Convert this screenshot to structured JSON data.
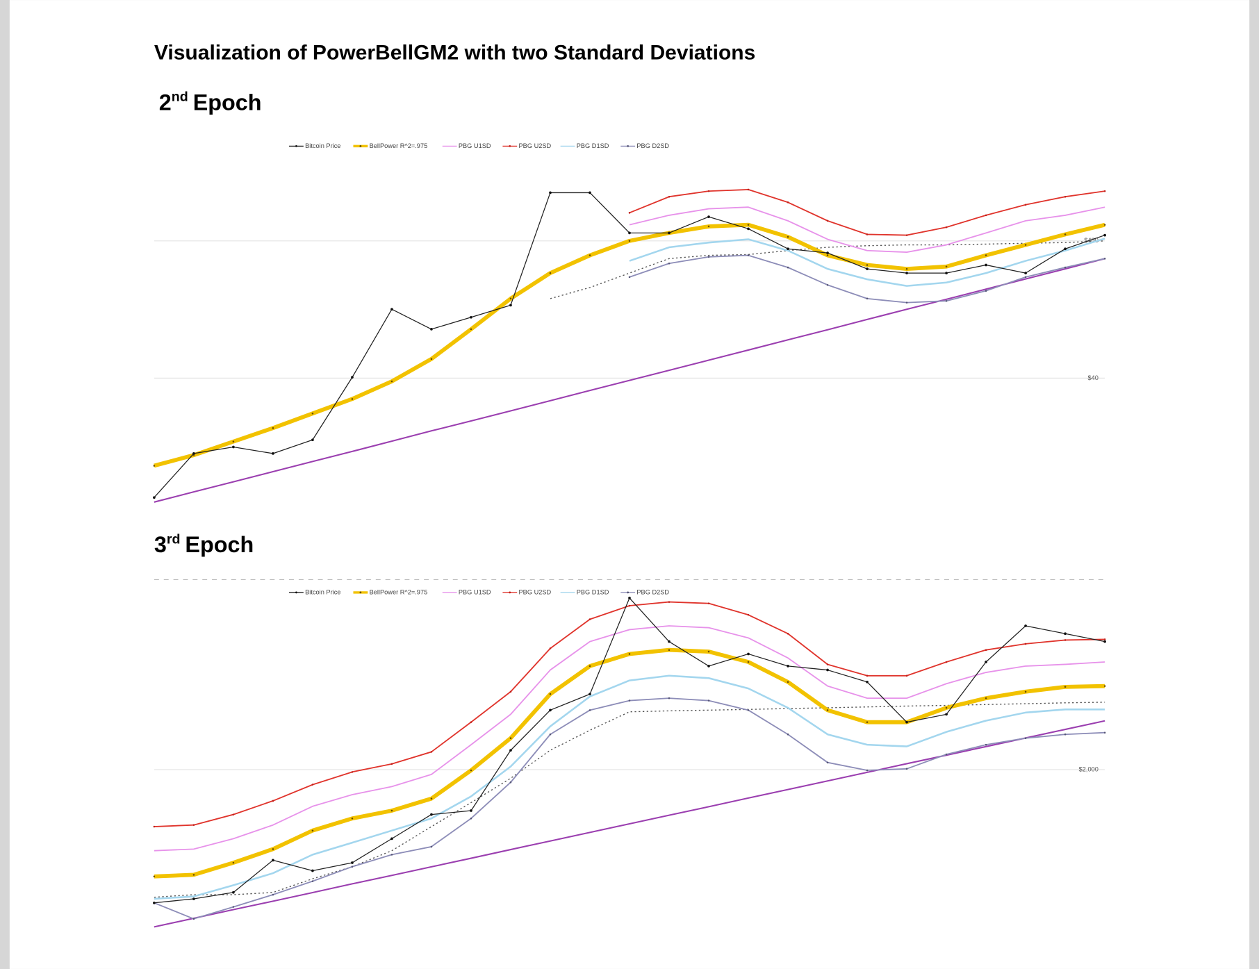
{
  "title": "Visualization of PowerBellGM2 with two Standard Deviations",
  "headings": [
    {
      "ordinal": "2",
      "suffix": "nd",
      "text": "Epoch"
    },
    {
      "ordinal": "3",
      "suffix": "rd",
      "text": "Epoch"
    }
  ],
  "chart_data": [
    {
      "type": "line",
      "log_y": true,
      "legend": "top",
      "grid": true,
      "categories": [
        null,
        null,
        null,
        null,
        null,
        null,
        null,
        null,
        null,
        null,
        null,
        null,
        null,
        null,
        null,
        null,
        null,
        null,
        null,
        null,
        null,
        null,
        null,
        null,
        null
      ],
      "ylim": [
        5,
        2000
      ],
      "yticks": [
        {
          "value": 40,
          "label": "$40"
        },
        {
          "value": 400,
          "label": "$400"
        }
      ],
      "series": [
        {
          "name": "Bitcoin Price",
          "color": "#222222",
          "marker": true,
          "marker_color": "#111111",
          "values": [
            5.4,
            11.3,
            12.6,
            11.3,
            14.2,
            40.6,
            127,
            91,
            111,
            136,
            898,
            898,
            457,
            457,
            599,
            490,
            350,
            327,
            250,
            233,
            233,
            267,
            233,
            350,
            440
          ]
        },
        {
          "name": "BellPower R^2=.975",
          "color": "#f2c200",
          "marker": true,
          "marker_color": "#6b4e00",
          "values": [
            9.2,
            11,
            13.8,
            17.3,
            22.1,
            28.2,
            37.9,
            55.2,
            91,
            152,
            233,
            314,
            400,
            457,
            510,
            524,
            428,
            314,
            267,
            250,
            260,
            314,
            374,
            446,
            524
          ]
        },
        {
          "name": "PBG U1SD",
          "color": "#e792ea",
          "marker": false,
          "values": [
            null,
            null,
            null,
            null,
            null,
            null,
            null,
            null,
            null,
            null,
            null,
            null,
            524,
            615,
            686,
            704,
            560,
            411,
            340,
            331,
            374,
            457,
            560,
            615,
            704
          ]
        },
        {
          "name": "PBG U2SD",
          "color": "#e0342c",
          "marker": true,
          "marker_color": "#c0201a",
          "values": [
            null,
            null,
            null,
            null,
            null,
            null,
            null,
            null,
            null,
            null,
            null,
            null,
            641,
            839,
            922,
            946,
            764,
            560,
            446,
            440,
            503,
            615,
            733,
            839,
            922
          ]
        },
        {
          "name": "PBG D1SD",
          "color": "#a3d6ee",
          "marker": false,
          "values": [
            null,
            null,
            null,
            null,
            null,
            null,
            null,
            null,
            null,
            null,
            null,
            null,
            286,
            359,
            389,
            411,
            340,
            250,
            210,
            188,
            199,
            233,
            286,
            340,
            416
          ]
        },
        {
          "name": "PBG D2SD",
          "color": "#8d8db8",
          "marker": true,
          "marker_color": "#555577",
          "values": [
            null,
            null,
            null,
            null,
            null,
            null,
            null,
            null,
            null,
            null,
            null,
            null,
            218,
            274,
            306,
            314,
            256,
            191,
            152,
            142,
            146,
            173,
            218,
            256,
            297
          ]
        },
        {
          "color": "#9b3fb0",
          "marker": false,
          "values": [
            5,
            5.93,
            7.03,
            8.33,
            9.88,
            11.7,
            13.9,
            16.5,
            19.5,
            23.1,
            27.4,
            32.5,
            38.5,
            45.6,
            54.1,
            64.1,
            76,
            90.1,
            107,
            127,
            150,
            178,
            211,
            250,
            297
          ]
        },
        {
          "color": "#555555",
          "marker": false,
          "dash": true,
          "values": [
            null,
            null,
            null,
            null,
            null,
            null,
            null,
            null,
            null,
            null,
            152,
            183,
            233,
            297,
            314,
            318,
            340,
            359,
            369,
            374,
            374,
            379,
            384,
            389,
            400
          ]
        }
      ]
    },
    {
      "type": "line",
      "log_y": true,
      "legend": "top",
      "grid": true,
      "categories": [
        null,
        null,
        null,
        null,
        null,
        null,
        null,
        null,
        null,
        null,
        null,
        null,
        null,
        null,
        null,
        null,
        null,
        null,
        null,
        null,
        null,
        null,
        null,
        null,
        null
      ],
      "ylim": [
        250,
        23000
      ],
      "yticks": [
        {
          "value": 2000,
          "label": "$2,000"
        }
      ],
      "series": [
        {
          "name": "Bitcoin Price",
          "color": "#222222",
          "marker": true,
          "marker_color": "#111111",
          "values": [
            363,
            382,
            415,
            627,
            548,
            607,
            826,
            1125,
            1183,
            2560,
            4280,
            5260,
            18000,
            10300,
            7530,
            8790,
            7530,
            7160,
            6140,
            3670,
            4060,
            7930,
            12600,
            11400,
            10300
          ]
        },
        {
          "name": "BellPower R^2=.975",
          "color": "#f2c200",
          "marker": true,
          "marker_color": "#6b4e00",
          "values": [
            509,
            520,
            607,
            723,
            916,
            1070,
            1183,
            1380,
            1980,
            2990,
            5260,
            7530,
            8790,
            9250,
            9060,
            7930,
            6140,
            4280,
            3670,
            3670,
            4410,
            4990,
            5420,
            5770,
            5830
          ]
        },
        {
          "name": "PBG U1SD",
          "color": "#e792ea",
          "marker": false,
          "values": [
            708,
            723,
            826,
            984,
            1250,
            1450,
            1610,
            1880,
            2750,
            4060,
            7160,
            10300,
            12000,
            12600,
            12300,
            10800,
            8350,
            5830,
            4990,
            4990,
            6010,
            6940,
            7530,
            7690,
            7930
          ]
        },
        {
          "name": "PBG U2SD",
          "color": "#e0342c",
          "marker": true,
          "marker_color": "#c0201a",
          "values": [
            964,
            984,
            1125,
            1340,
            1650,
            1940,
            2150,
            2510,
            3670,
            5420,
            9440,
            13700,
            16300,
            17100,
            16800,
            14500,
            11400,
            7690,
            6650,
            6650,
            7930,
            9250,
            10000,
            10500,
            10600
          ]
        },
        {
          "name": "PBG D1SD",
          "color": "#a3d6ee",
          "marker": false,
          "values": [
            382,
            394,
            455,
            531,
            673,
            785,
            916,
            1070,
            1420,
            2080,
            3480,
            5100,
            6260,
            6650,
            6450,
            5650,
            4410,
            3140,
            2750,
            2690,
            3240,
            3740,
            4150,
            4320,
            4320
          ]
        },
        {
          "name": "PBG D2SD",
          "color": "#8d8db8",
          "marker": true,
          "marker_color": "#555577",
          "values": [
            363,
            296,
            345,
            403,
            479,
            577,
            673,
            745,
            1070,
            1700,
            3140,
            4280,
            4840,
            4990,
            4840,
            4280,
            3140,
            2190,
            1980,
            2020,
            2430,
            2750,
            2990,
            3140,
            3210
          ]
        },
        {
          "color": "#9b3fb0",
          "marker": false,
          "values": [
            267,
            298,
            333,
            371,
            414,
            463,
            516,
            576,
            643,
            718,
            802,
            895,
            999,
            1115,
            1244,
            1389,
            1550,
            1730,
            1931,
            2156,
            2406,
            2686,
            2998,
            3346,
            3735
          ]
        },
        {
          "color": "#555555",
          "marker": false,
          "dash": true,
          "values": [
            390,
            403,
            403,
            415,
            494,
            577,
            708,
            964,
            1310,
            1790,
            2560,
            3310,
            4190,
            4240,
            4280,
            4320,
            4370,
            4410,
            4460,
            4510,
            4550,
            4600,
            4650,
            4700,
            4740
          ]
        }
      ]
    }
  ]
}
